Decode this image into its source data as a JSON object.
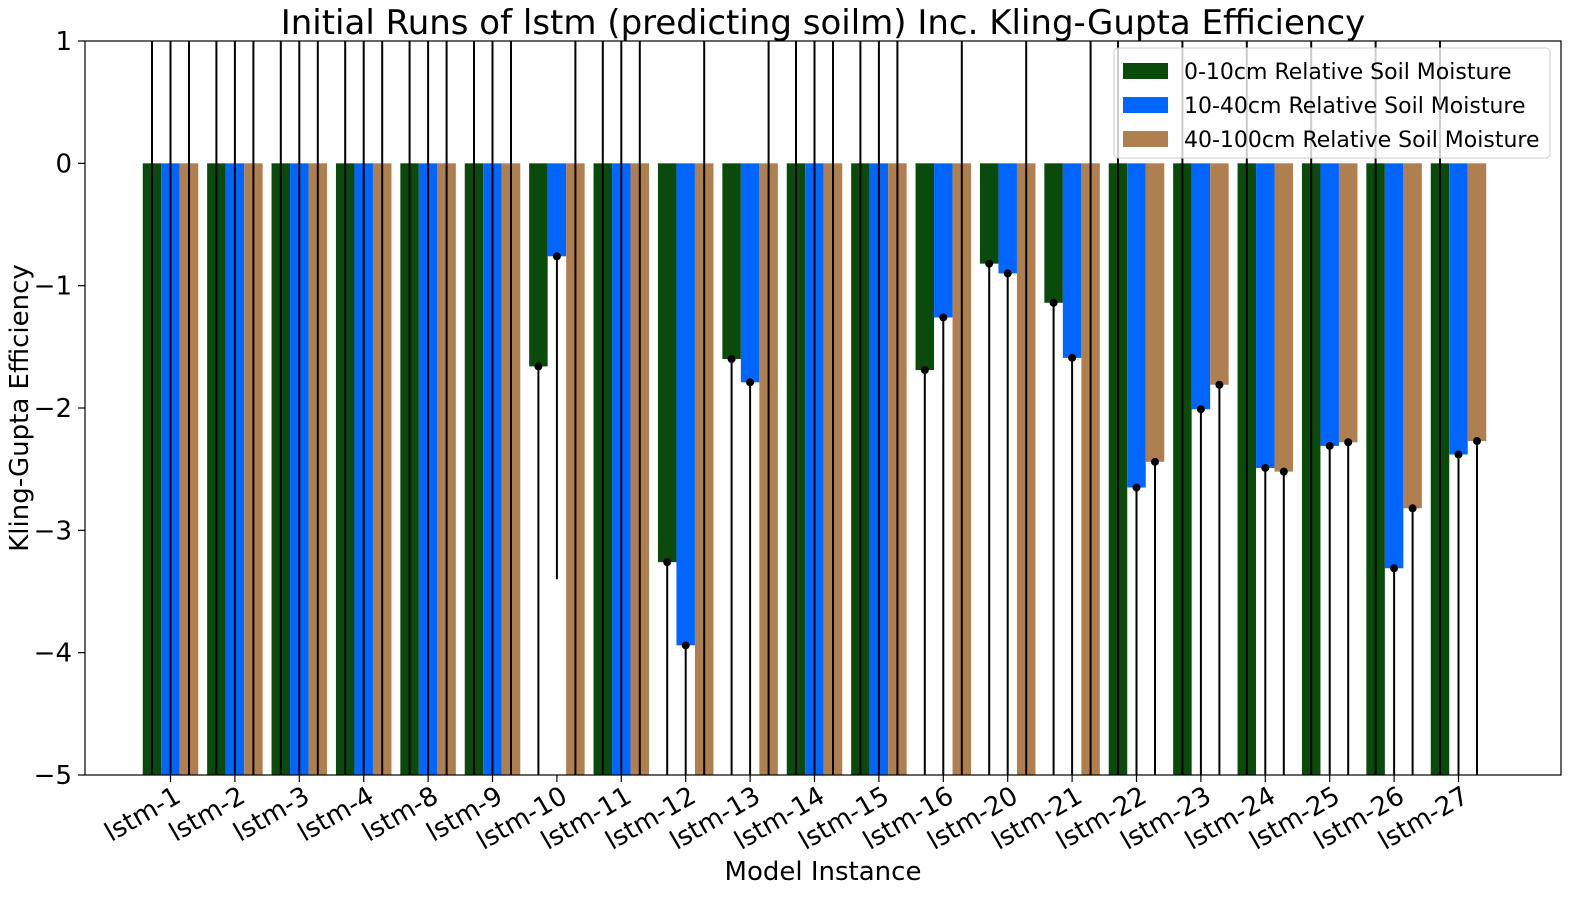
{
  "chart_data": {
    "type": "bar",
    "title": "Initial Runs of lstm (predicting soilm) Inc. Kling-Gupta Efficiency",
    "xlabel": "Model Instance",
    "ylabel": "Kling-Gupta Efficiency",
    "ylim": [
      -5,
      1
    ],
    "yticks": [
      1,
      0,
      -1,
      -2,
      -3,
      -4,
      -5
    ],
    "ytick_labels": [
      "1",
      "0",
      "−1",
      "−2",
      "−3",
      "−4",
      "−5"
    ],
    "grid": false,
    "legend_position": "top-right",
    "categories": [
      "lstm-1",
      "lstm-2",
      "lstm-3",
      "lstm-4",
      "lstm-8",
      "lstm-9",
      "lstm-10",
      "lstm-11",
      "lstm-12",
      "lstm-13",
      "lstm-14",
      "lstm-15",
      "lstm-16",
      "lstm-20",
      "lstm-21",
      "lstm-22",
      "lstm-23",
      "lstm-24",
      "lstm-25",
      "lstm-26",
      "lstm-27"
    ],
    "series": [
      {
        "name": "0-10cm Relative Soil Moisture",
        "color": "#0a4a0a",
        "values": [
          -5,
          -5,
          -5,
          -5,
          -5,
          -5,
          -1.66,
          -5,
          -3.26,
          -1.6,
          -5,
          -5,
          -1.69,
          -0.82,
          -1.14,
          -5,
          -5,
          -5,
          -5,
          -5,
          -5
        ],
        "error_low": [
          -5,
          -5,
          -5,
          -5,
          -5,
          -5,
          -5,
          -5,
          -5,
          -5,
          -5,
          -5,
          -5,
          -5,
          -5,
          -5,
          -5,
          -5,
          -5,
          -5,
          -5
        ],
        "error_high": [
          1,
          1,
          1,
          1,
          1,
          1,
          -1.66,
          1,
          -3.26,
          -1.6,
          1,
          1,
          -1.69,
          -0.82,
          -1.14,
          1,
          1,
          1,
          1,
          1,
          1
        ]
      },
      {
        "name": "10-40cm Relative Soil Moisture",
        "color": "#0066ff",
        "values": [
          -5,
          -5,
          -5,
          -5,
          -5,
          -5,
          -0.76,
          -5,
          -3.94,
          -1.79,
          -5,
          -5,
          -1.26,
          -0.9,
          -1.59,
          -2.65,
          -2.01,
          -2.49,
          -2.31,
          -3.31,
          -2.38
        ],
        "error_low": [
          -5,
          -5,
          -5,
          -5,
          -5,
          -5,
          -3.4,
          -5,
          -5,
          -5,
          -5,
          -5,
          -5,
          -5,
          -5,
          -5,
          -5,
          -5,
          -5,
          -5,
          -5
        ],
        "error_high": [
          1,
          1,
          1,
          1,
          1,
          1,
          -0.76,
          1,
          -3.94,
          -1.79,
          1,
          1,
          -1.26,
          -0.9,
          -1.59,
          -2.65,
          -2.01,
          -2.49,
          -2.31,
          -3.31,
          -2.38
        ]
      },
      {
        "name": "40-100cm Relative Soil Moisture",
        "color": "#b07f4f",
        "values": [
          -5,
          -5,
          -5,
          -5,
          -5,
          -5,
          -5,
          -5,
          -5,
          -5,
          -5,
          -5,
          -5,
          -5,
          -5,
          -2.44,
          -1.81,
          -2.52,
          -2.28,
          -2.82,
          -2.27
        ],
        "error_low": [
          -5,
          -5,
          -5,
          -5,
          -5,
          -5,
          -5,
          -5,
          -5,
          -5,
          -5,
          -5,
          -5,
          -5,
          -5,
          -5,
          -5,
          -5,
          -5,
          -5,
          -5
        ],
        "error_high": [
          1,
          1,
          1,
          1,
          1,
          1,
          1,
          1,
          1,
          1,
          1,
          1,
          1,
          1,
          1,
          -2.44,
          -1.81,
          -2.52,
          -2.28,
          -2.82,
          -2.27
        ]
      }
    ]
  }
}
